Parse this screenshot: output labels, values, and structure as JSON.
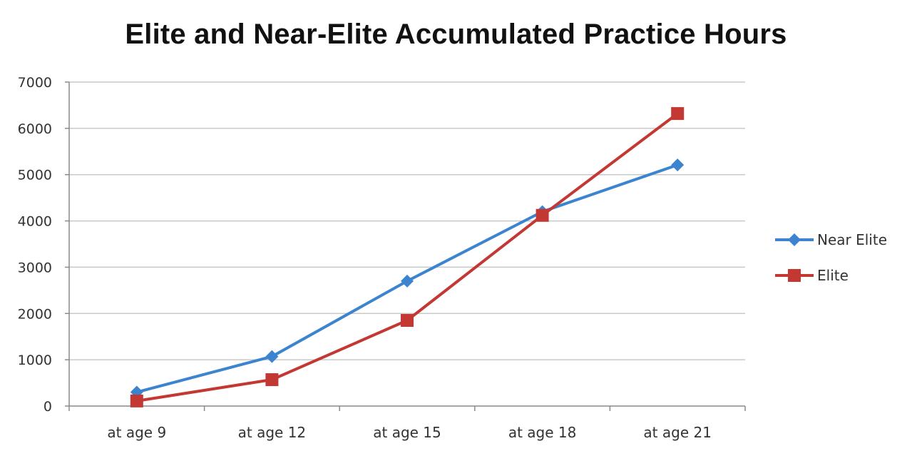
{
  "chart_data": {
    "type": "line",
    "title": "Elite and Near-Elite Accumulated Practice Hours",
    "categories": [
      "at age 9",
      "at age 12",
      "at age 15",
      "at age 18",
      "at age 21"
    ],
    "ylim": [
      0,
      7000
    ],
    "y_ticks": [
      "0",
      "1000",
      "2000",
      "3000",
      "4000",
      "5000",
      "6000",
      "7000"
    ],
    "grid": true,
    "legend_position": "right",
    "series": [
      {
        "name": "Near Elite",
        "values": [
          300,
          1070,
          2700,
          4200,
          5210
        ],
        "color": "#3c84cf",
        "marker": "diamond"
      },
      {
        "name": "Elite",
        "values": [
          110,
          570,
          1850,
          4120,
          6320
        ],
        "color": "#c43833",
        "marker": "square"
      }
    ]
  }
}
